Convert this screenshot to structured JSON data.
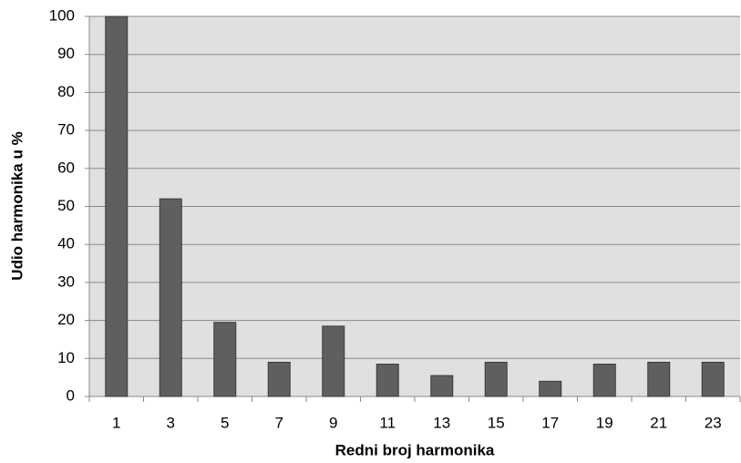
{
  "chart_data": {
    "type": "bar",
    "x_label": "Redni broj harmonika",
    "y_label": "Udio harmonika u %",
    "categories": [
      "1",
      "3",
      "5",
      "7",
      "9",
      "11",
      "13",
      "15",
      "17",
      "19",
      "21",
      "23"
    ],
    "values": [
      100,
      52,
      19.5,
      9,
      18.5,
      8.5,
      5.5,
      9,
      4,
      8.5,
      9,
      9
    ],
    "color": "#5f5f5f",
    "ylim": [
      0,
      100
    ],
    "yticks": [
      0,
      10,
      20,
      30,
      40,
      50,
      60,
      70,
      80,
      90,
      100
    ],
    "grid": true
  }
}
